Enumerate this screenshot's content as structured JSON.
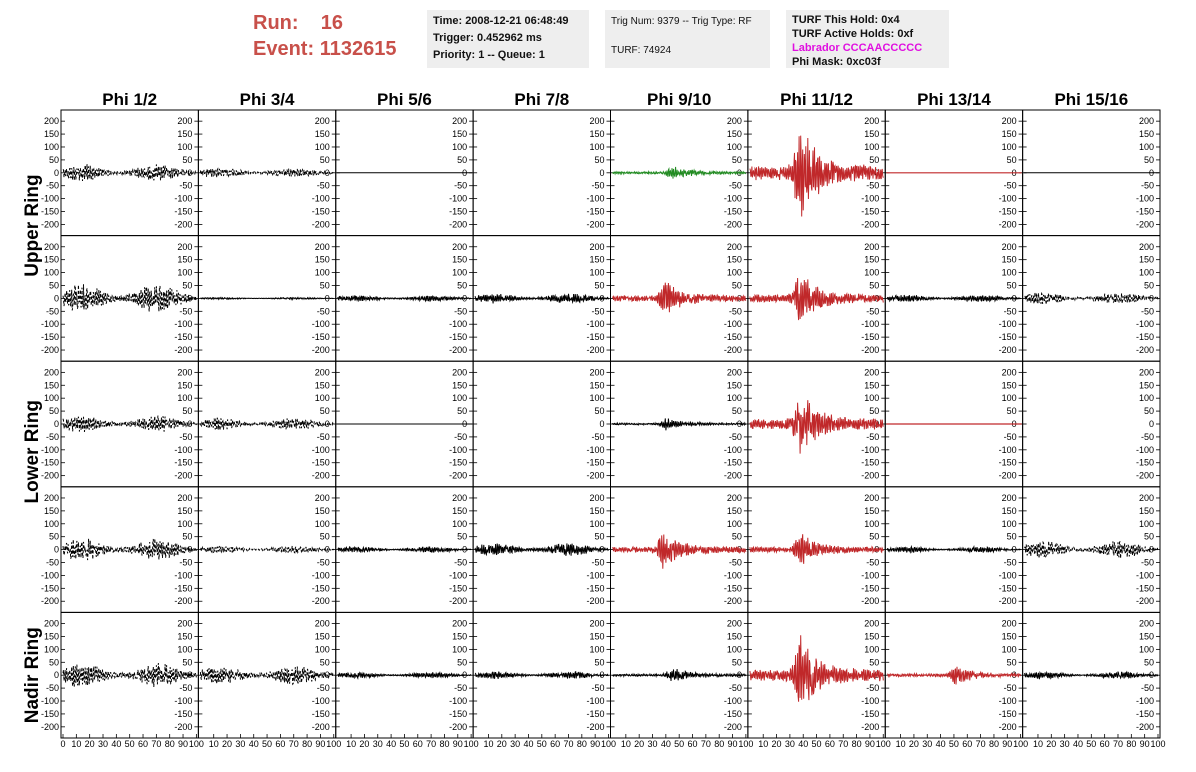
{
  "header": {
    "run_label": "Run:",
    "run_value": "16",
    "event_label": "Event:",
    "event_value": "1132615",
    "time": "Time: 2008-12-21 06:48:49",
    "trigger": "Trigger: 0.452962 ms",
    "priority": "Priority: 1 -- Queue: 1",
    "trig_num": "Trig Num: 9379 -- Trig Type: RF",
    "turf": "TURF: 74924",
    "turf_this_hold": "TURF This Hold: 0x4",
    "turf_active_holds": "TURF Active Holds: 0xf",
    "labrador": "Labrador CCCAACCCCC",
    "phi_mask": "Phi Mask: 0xc03f"
  },
  "colors": {
    "header_red": "#c8504a",
    "labrador_magenta": "#e010e0",
    "trace_black": "#000000",
    "trace_red": "#c0282a",
    "trace_green": "#228b22",
    "info_bg": "#eeeeee"
  },
  "chart_data": {
    "type": "line",
    "columns": [
      "Phi 1/2",
      "Phi 3/4",
      "Phi 5/6",
      "Phi 7/8",
      "Phi 9/10",
      "Phi 11/12",
      "Phi 13/14",
      "Phi 15/16"
    ],
    "row_labels": [
      "Upper Ring",
      "Lower Ring",
      "Nadir Ring"
    ],
    "y_ticks": [
      "200",
      "150",
      "100",
      "50",
      "0",
      "-50",
      "-100",
      "-150",
      "-200"
    ],
    "x_ticks": [
      "0",
      "10",
      "20",
      "30",
      "40",
      "50",
      "60",
      "70",
      "80",
      "90",
      "100"
    ],
    "ylim": [
      -220,
      220
    ],
    "xlim": [
      0,
      100
    ],
    "grid": false,
    "panels": [
      [
        {
          "style": "dashed",
          "amp": 35
        },
        {
          "style": "dashed",
          "amp": 20
        },
        {
          "style": "flat"
        },
        {
          "style": "none"
        },
        {
          "style": "green",
          "amp": 30,
          "peak": 45
        },
        {
          "style": "red",
          "amp": 200,
          "peak": 38
        },
        {
          "style": "redflat"
        },
        {
          "style": "flat"
        }
      ],
      [
        {
          "style": "dashed",
          "amp": 60
        },
        {
          "style": "flat",
          "amp": 4
        },
        {
          "style": "black",
          "amp": 12
        },
        {
          "style": "black",
          "amp": 20
        },
        {
          "style": "red",
          "amp": 80,
          "peak": 40
        },
        {
          "style": "red",
          "amp": 110,
          "peak": 38
        },
        {
          "style": "black",
          "amp": 15
        },
        {
          "style": "dashed",
          "amp": 25
        }
      ],
      [
        {
          "style": "dashed",
          "amp": 35
        },
        {
          "style": "dashed",
          "amp": 25
        },
        {
          "style": "flat"
        },
        {
          "style": "none"
        },
        {
          "style": "black",
          "amp": 25,
          "peak": 40
        },
        {
          "style": "red",
          "amp": 140,
          "peak": 38
        },
        {
          "style": "redflat"
        },
        {
          "style": "none"
        }
      ],
      [
        {
          "style": "dashed",
          "amp": 45
        },
        {
          "style": "dashed",
          "amp": 15
        },
        {
          "style": "black",
          "amp": 12
        },
        {
          "style": "black",
          "amp": 25
        },
        {
          "style": "red",
          "amp": 80,
          "peak": 38
        },
        {
          "style": "red",
          "amp": 70,
          "peak": 38
        },
        {
          "style": "black",
          "amp": 12
        },
        {
          "style": "dashed",
          "amp": 35
        }
      ],
      [
        {
          "style": "dashed",
          "amp": 50
        },
        {
          "style": "dashed",
          "amp": 40
        },
        {
          "style": "black",
          "amp": 12
        },
        {
          "style": "black",
          "amp": 15
        },
        {
          "style": "black",
          "amp": 30,
          "peak": 45
        },
        {
          "style": "red",
          "amp": 160,
          "peak": 38
        },
        {
          "style": "red",
          "amp": 40,
          "peak": 52
        },
        {
          "style": "black",
          "amp": 15
        }
      ]
    ]
  }
}
